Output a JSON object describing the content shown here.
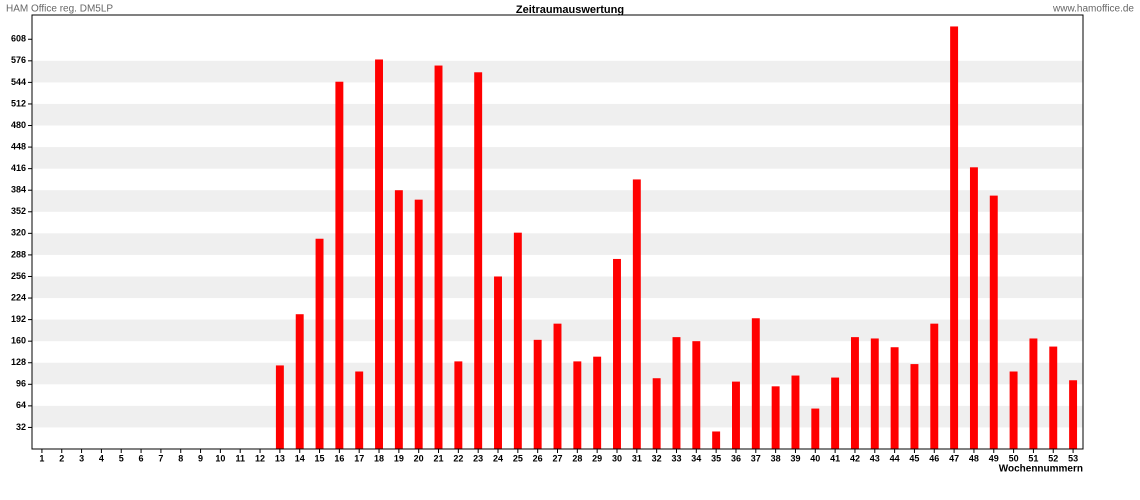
{
  "chart_data": {
    "type": "bar",
    "title": "Zeitraumauswertung",
    "header_left": "HAM Office reg. DM5LP",
    "header_right": "www.hamoffice.de",
    "x_label": "Wochennummern",
    "categories": [
      "1",
      "2",
      "3",
      "4",
      "5",
      "6",
      "7",
      "8",
      "9",
      "10",
      "11",
      "12",
      "13",
      "14",
      "15",
      "16",
      "17",
      "18",
      "19",
      "20",
      "21",
      "22",
      "23",
      "24",
      "25",
      "26",
      "27",
      "28",
      "29",
      "30",
      "31",
      "32",
      "33",
      "34",
      "35",
      "36",
      "37",
      "38",
      "39",
      "40",
      "41",
      "42",
      "43",
      "44",
      "45",
      "46",
      "47",
      "48",
      "49",
      "50",
      "51",
      "52",
      "53"
    ],
    "values": [
      0,
      0,
      0,
      0,
      0,
      0,
      0,
      0,
      0,
      0,
      0,
      0,
      124,
      200,
      312,
      545,
      115,
      578,
      384,
      370,
      569,
      130,
      559,
      256,
      321,
      162,
      186,
      130,
      137,
      282,
      400,
      105,
      166,
      160,
      26,
      100,
      194,
      93,
      109,
      60,
      106,
      166,
      164,
      151,
      126,
      186,
      627,
      418,
      376,
      115,
      164,
      152,
      102
    ],
    "color": "#ff0000",
    "ylim": [
      0,
      644
    ],
    "yticks": [
      32,
      64,
      96,
      128,
      160,
      192,
      224,
      256,
      288,
      320,
      352,
      384,
      416,
      448,
      480,
      512,
      544,
      576,
      608
    ],
    "grid": true
  }
}
